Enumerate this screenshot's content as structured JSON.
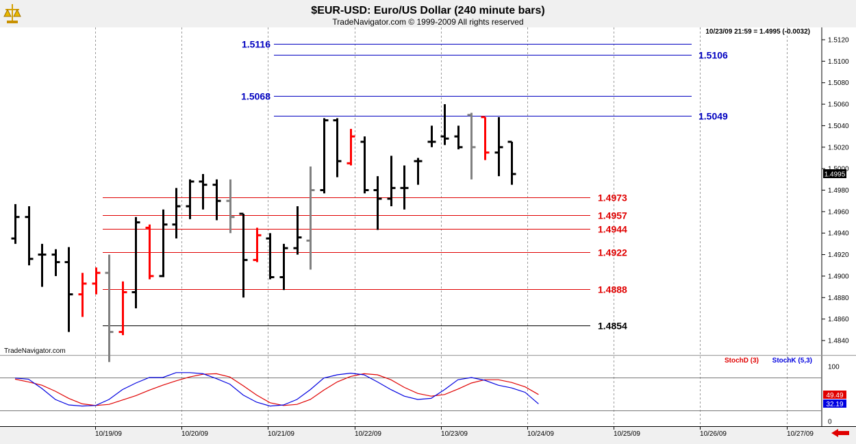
{
  "header": {
    "title": "$EUR-USD:  Euro/US Dollar  (240 minute bars)",
    "subtitle": "TradeNavigator.com © 1999-2009 All rights reserved",
    "last_readout": "10/23/09 21:59 = 1.4995 (-0.0032)",
    "watermark": "TradeNavigator.com"
  },
  "colors": {
    "background": "#ffffff",
    "bar_black": "#000000",
    "bar_red": "#ff0000",
    "bar_gray": "#808080",
    "line_blue": "#0000c0",
    "line_red": "#e00000",
    "stoch_d": "#e00000",
    "stoch_k": "#0000e0"
  },
  "chart_data": [
    {
      "type": "ohlc",
      "title": "$EUR-USD:  Euro/US Dollar  (240 minute bars)",
      "ylim": [
        1.483,
        1.5125
      ],
      "y_ticks": [
        "1.5120",
        "1.5100",
        "1.5080",
        "1.5060",
        "1.5040",
        "1.5020",
        "1.5000",
        "1.4980",
        "1.4960",
        "1.4940",
        "1.4920",
        "1.4900",
        "1.4880",
        "1.4860",
        "1.4840"
      ],
      "x_ticks": [
        "10/19/09",
        "10/20/09",
        "10/21/09",
        "10/22/09",
        "10/23/09",
        "10/24/09",
        "10/25/09",
        "10/26/09",
        "10/27/09"
      ],
      "last_price": "1.4995",
      "bars": [
        {
          "o": 1.4935,
          "h": 1.4967,
          "l": 1.493,
          "c": 1.4955,
          "color": "black"
        },
        {
          "o": 1.4955,
          "h": 1.4965,
          "l": 1.491,
          "c": 1.4916,
          "color": "black"
        },
        {
          "o": 1.492,
          "h": 1.493,
          "l": 1.489,
          "c": 1.492,
          "color": "black"
        },
        {
          "o": 1.492,
          "h": 1.4925,
          "l": 1.49,
          "c": 1.4913,
          "color": "black"
        },
        {
          "o": 1.4913,
          "h": 1.4927,
          "l": 1.4848,
          "c": 1.4883,
          "color": "black"
        },
        {
          "o": 1.4883,
          "h": 1.4903,
          "l": 1.4862,
          "c": 1.4893,
          "color": "red"
        },
        {
          "o": 1.4893,
          "h": 1.4908,
          "l": 1.4883,
          "c": 1.4903,
          "color": "red"
        },
        {
          "o": 1.4903,
          "h": 1.492,
          "l": 1.482,
          "c": 1.4848,
          "color": "gray"
        },
        {
          "o": 1.4848,
          "h": 1.4895,
          "l": 1.4845,
          "c": 1.4885,
          "color": "red"
        },
        {
          "o": 1.4885,
          "h": 1.4955,
          "l": 1.487,
          "c": 1.495,
          "color": "black"
        },
        {
          "o": 1.4945,
          "h": 1.4948,
          "l": 1.4897,
          "c": 1.49,
          "color": "red"
        },
        {
          "o": 1.49,
          "h": 1.4962,
          "l": 1.4899,
          "c": 1.4948,
          "color": "black"
        },
        {
          "o": 1.4948,
          "h": 1.4982,
          "l": 1.4935,
          "c": 1.4965,
          "color": "black"
        },
        {
          "o": 1.4965,
          "h": 1.499,
          "l": 1.4953,
          "c": 1.4988,
          "color": "black"
        },
        {
          "o": 1.4988,
          "h": 1.4995,
          "l": 1.4962,
          "c": 1.4985,
          "color": "black"
        },
        {
          "o": 1.4985,
          "h": 1.499,
          "l": 1.4952,
          "c": 1.497,
          "color": "black"
        },
        {
          "o": 1.497,
          "h": 1.499,
          "l": 1.494,
          "c": 1.4955,
          "color": "gray"
        },
        {
          "o": 1.4958,
          "h": 1.4958,
          "l": 1.488,
          "c": 1.4915,
          "color": "black"
        },
        {
          "o": 1.4915,
          "h": 1.4945,
          "l": 1.4913,
          "c": 1.4938,
          "color": "red"
        },
        {
          "o": 1.4935,
          "h": 1.494,
          "l": 1.4897,
          "c": 1.4899,
          "color": "black"
        },
        {
          "o": 1.4899,
          "h": 1.493,
          "l": 1.4887,
          "c": 1.4926,
          "color": "black"
        },
        {
          "o": 1.4926,
          "h": 1.4965,
          "l": 1.492,
          "c": 1.4936,
          "color": "black"
        },
        {
          "o": 1.4933,
          "h": 1.5002,
          "l": 1.4906,
          "c": 1.498,
          "color": "gray"
        },
        {
          "o": 1.498,
          "h": 1.5047,
          "l": 1.4977,
          "c": 1.5045,
          "color": "black"
        },
        {
          "o": 1.5045,
          "h": 1.5047,
          "l": 1.4992,
          "c": 1.5007,
          "color": "black"
        },
        {
          "o": 1.5005,
          "h": 1.5037,
          "l": 1.5003,
          "c": 1.503,
          "color": "red"
        },
        {
          "o": 1.5025,
          "h": 1.503,
          "l": 1.4977,
          "c": 1.498,
          "color": "black"
        },
        {
          "o": 1.498,
          "h": 1.4993,
          "l": 1.4943,
          "c": 1.4972,
          "color": "black"
        },
        {
          "o": 1.4972,
          "h": 1.5012,
          "l": 1.4965,
          "c": 1.4982,
          "color": "black"
        },
        {
          "o": 1.4982,
          "h": 1.5003,
          "l": 1.4962,
          "c": 1.4982,
          "color": "black"
        },
        {
          "o": 1.5007,
          "h": 1.501,
          "l": 1.4985,
          "c": 1.5007,
          "color": "black"
        },
        {
          "o": 1.5025,
          "h": 1.504,
          "l": 1.502,
          "c": 1.5025,
          "color": "black"
        },
        {
          "o": 1.503,
          "h": 1.506,
          "l": 1.5022,
          "c": 1.5028,
          "color": "black"
        },
        {
          "o": 1.503,
          "h": 1.504,
          "l": 1.5018,
          "c": 1.502,
          "color": "black"
        },
        {
          "o": 1.505,
          "h": 1.5052,
          "l": 1.499,
          "c": 1.502,
          "color": "gray"
        },
        {
          "o": 1.5048,
          "h": 1.5048,
          "l": 1.5008,
          "c": 1.5015,
          "color": "red"
        },
        {
          "o": 1.5015,
          "h": 1.5048,
          "l": 1.4993,
          "c": 1.502,
          "color": "black"
        },
        {
          "o": 1.5025,
          "h": 1.5025,
          "l": 1.4985,
          "c": 1.4995,
          "color": "black"
        }
      ],
      "levels": [
        {
          "label": "1.5116",
          "value": 1.5116,
          "color": "blue",
          "label_side": "left"
        },
        {
          "label": "1.5106",
          "value": 1.5106,
          "color": "blue",
          "label_side": "right"
        },
        {
          "label": "1.5068",
          "value": 1.5068,
          "color": "blue",
          "label_side": "left"
        },
        {
          "label": "1.5049",
          "value": 1.5049,
          "color": "blue",
          "label_side": "right"
        },
        {
          "label": "1.4973",
          "value": 1.4973,
          "color": "red",
          "label_side": "right"
        },
        {
          "label": "1.4957",
          "value": 1.4957,
          "color": "red",
          "label_side": "right"
        },
        {
          "label": "1.4944",
          "value": 1.4944,
          "color": "red",
          "label_side": "right"
        },
        {
          "label": "1.4922",
          "value": 1.4922,
          "color": "red",
          "label_side": "right"
        },
        {
          "label": "1.4888",
          "value": 1.4888,
          "color": "red",
          "label_side": "right"
        },
        {
          "label": "1.4854",
          "value": 1.4854,
          "color": "black",
          "label_side": "right"
        }
      ]
    },
    {
      "type": "line",
      "title": "",
      "ylim": [
        0,
        100
      ],
      "y_ticks": [
        "100",
        "0"
      ],
      "reference_lines": [
        80,
        20
      ],
      "series": [
        {
          "name": "StochD (3)",
          "color": "red",
          "last_label": "49.49",
          "values": [
            77,
            72,
            66,
            55,
            42,
            32,
            29,
            31,
            39,
            47,
            57,
            66,
            74,
            81,
            86,
            87,
            81,
            65,
            48,
            34,
            29,
            31,
            40,
            57,
            72,
            82,
            87,
            85,
            76,
            62,
            51,
            46,
            49,
            59,
            70,
            76,
            76,
            71,
            63,
            49
          ]
        },
        {
          "name": "StochK (5,3)",
          "color": "blue",
          "last_label": "32.19",
          "values": [
            79,
            77,
            60,
            40,
            30,
            28,
            29,
            40,
            58,
            70,
            80,
            80,
            89,
            89,
            87,
            78,
            68,
            48,
            35,
            28,
            30,
            40,
            58,
            79,
            85,
            88,
            85,
            72,
            58,
            46,
            40,
            42,
            58,
            76,
            80,
            75,
            66,
            61,
            53,
            32
          ]
        }
      ]
    }
  ]
}
